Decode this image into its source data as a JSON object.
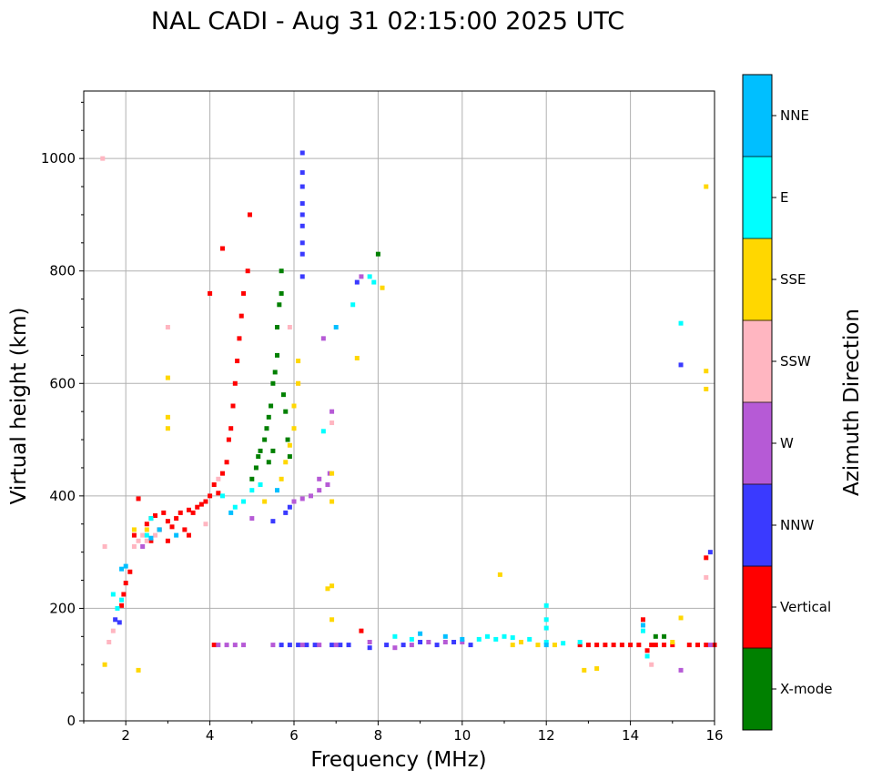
{
  "chart_data": {
    "type": "scatter",
    "title": "NAL CADI - Aug 31 02:15:00 2025 UTC",
    "xlabel": "Frequency (MHz)",
    "ylabel": "Virtual height (km)",
    "xlim": [
      1,
      16
    ],
    "ylim": [
      0,
      1120
    ],
    "xticks": [
      2,
      4,
      6,
      8,
      10,
      12,
      14,
      16
    ],
    "yticks": [
      0,
      200,
      400,
      600,
      800,
      1000
    ],
    "grid": true,
    "colorbar": {
      "label": "Azimuth Direction",
      "categories": [
        {
          "name": "X-mode",
          "color": "#008000"
        },
        {
          "name": "Vertical",
          "color": "#ff0000"
        },
        {
          "name": "NNW",
          "color": "#3a3aff"
        },
        {
          "name": "W",
          "color": "#b65ad6"
        },
        {
          "name": "SSW",
          "color": "#ffb6c1"
        },
        {
          "name": "SSE",
          "color": "#ffd700"
        },
        {
          "name": "E",
          "color": "#00ffff"
        },
        {
          "name": "NNE",
          "color": "#00bfff"
        }
      ]
    },
    "series": [
      {
        "name": "Vertical",
        "points": [
          [
            1.9,
            205
          ],
          [
            1.95,
            225
          ],
          [
            2.0,
            245
          ],
          [
            2.1,
            265
          ],
          [
            2.2,
            330
          ],
          [
            2.3,
            395
          ],
          [
            2.5,
            350
          ],
          [
            2.6,
            360
          ],
          [
            2.7,
            365
          ],
          [
            2.8,
            340
          ],
          [
            2.9,
            370
          ],
          [
            3.0,
            355
          ],
          [
            3.1,
            345
          ],
          [
            3.2,
            360
          ],
          [
            3.3,
            370
          ],
          [
            3.4,
            340
          ],
          [
            3.5,
            375
          ],
          [
            3.6,
            370
          ],
          [
            3.7,
            380
          ],
          [
            3.8,
            385
          ],
          [
            3.9,
            390
          ],
          [
            4.0,
            400
          ],
          [
            4.1,
            420
          ],
          [
            4.2,
            405
          ],
          [
            4.3,
            440
          ],
          [
            4.4,
            460
          ],
          [
            4.45,
            500
          ],
          [
            4.5,
            520
          ],
          [
            4.55,
            560
          ],
          [
            4.6,
            600
          ],
          [
            4.65,
            640
          ],
          [
            4.7,
            680
          ],
          [
            4.75,
            720
          ],
          [
            4.8,
            760
          ],
          [
            4.9,
            800
          ],
          [
            4.95,
            900
          ],
          [
            3.5,
            330
          ],
          [
            3.0,
            320
          ],
          [
            2.6,
            320
          ],
          [
            4.0,
            760
          ],
          [
            4.3,
            840
          ],
          [
            14.3,
            180
          ],
          [
            14.4,
            125
          ],
          [
            14.5,
            135
          ],
          [
            15.8,
            290
          ],
          [
            4.1,
            135
          ],
          [
            7.6,
            160
          ],
          [
            12.8,
            135
          ],
          [
            13.0,
            135
          ],
          [
            13.2,
            135
          ],
          [
            13.4,
            135
          ],
          [
            13.6,
            135
          ],
          [
            13.8,
            135
          ],
          [
            14.0,
            135
          ],
          [
            14.2,
            135
          ],
          [
            14.6,
            135
          ],
          [
            14.8,
            135
          ],
          [
            15.0,
            135
          ],
          [
            15.4,
            135
          ],
          [
            15.6,
            135
          ],
          [
            15.8,
            135
          ],
          [
            16.0,
            135
          ]
        ]
      },
      {
        "name": "X-mode",
        "points": [
          [
            5.0,
            430
          ],
          [
            5.1,
            450
          ],
          [
            5.15,
            470
          ],
          [
            5.2,
            480
          ],
          [
            5.3,
            500
          ],
          [
            5.35,
            520
          ],
          [
            5.4,
            540
          ],
          [
            5.45,
            560
          ],
          [
            5.5,
            600
          ],
          [
            5.55,
            620
          ],
          [
            5.6,
            650
          ],
          [
            5.6,
            700
          ],
          [
            5.65,
            740
          ],
          [
            5.7,
            760
          ],
          [
            5.7,
            800
          ],
          [
            5.75,
            580
          ],
          [
            5.8,
            550
          ],
          [
            5.85,
            500
          ],
          [
            5.9,
            470
          ],
          [
            5.5,
            480
          ],
          [
            5.4,
            460
          ],
          [
            8.0,
            830
          ],
          [
            14.6,
            150
          ],
          [
            14.8,
            150
          ]
        ]
      },
      {
        "name": "NNW",
        "points": [
          [
            6.2,
            1010
          ],
          [
            6.2,
            975
          ],
          [
            6.2,
            950
          ],
          [
            6.2,
            920
          ],
          [
            6.2,
            900
          ],
          [
            6.2,
            880
          ],
          [
            6.2,
            850
          ],
          [
            6.2,
            830
          ],
          [
            6.2,
            790
          ],
          [
            5.9,
            380
          ],
          [
            5.8,
            370
          ],
          [
            5.5,
            355
          ],
          [
            15.2,
            633
          ],
          [
            15.9,
            300
          ],
          [
            7.5,
            780
          ],
          [
            5.7,
            135
          ],
          [
            5.9,
            135
          ],
          [
            6.1,
            135
          ],
          [
            6.3,
            135
          ],
          [
            6.5,
            135
          ],
          [
            6.9,
            135
          ],
          [
            7.1,
            135
          ],
          [
            7.3,
            135
          ],
          [
            7.8,
            130
          ],
          [
            8.2,
            135
          ],
          [
            8.6,
            135
          ],
          [
            9.0,
            140
          ],
          [
            9.4,
            135
          ],
          [
            9.8,
            140
          ],
          [
            10.2,
            135
          ],
          [
            1.75,
            180
          ],
          [
            1.85,
            175
          ]
        ]
      },
      {
        "name": "W",
        "points": [
          [
            6.0,
            390
          ],
          [
            6.2,
            395
          ],
          [
            6.4,
            400
          ],
          [
            6.6,
            410
          ],
          [
            6.8,
            420
          ],
          [
            6.6,
            430
          ],
          [
            6.7,
            680
          ],
          [
            6.9,
            550
          ],
          [
            7.6,
            790
          ],
          [
            6.85,
            440
          ],
          [
            4.2,
            135
          ],
          [
            4.4,
            135
          ],
          [
            4.6,
            135
          ],
          [
            4.8,
            135
          ],
          [
            5.5,
            135
          ],
          [
            6.2,
            135
          ],
          [
            6.6,
            135
          ],
          [
            7.0,
            135
          ],
          [
            7.8,
            140
          ],
          [
            8.4,
            130
          ],
          [
            8.8,
            135
          ],
          [
            9.2,
            140
          ],
          [
            9.6,
            140
          ],
          [
            10.0,
            140
          ],
          [
            15.2,
            90
          ],
          [
            15.9,
            135
          ],
          [
            5.0,
            360
          ],
          [
            2.4,
            310
          ]
        ]
      },
      {
        "name": "SSW",
        "points": [
          [
            1.45,
            1000
          ],
          [
            1.6,
            140
          ],
          [
            1.7,
            160
          ],
          [
            2.2,
            310
          ],
          [
            2.3,
            320
          ],
          [
            2.4,
            330
          ],
          [
            2.5,
            320
          ],
          [
            2.7,
            330
          ],
          [
            3.0,
            700
          ],
          [
            5.9,
            700
          ],
          [
            6.1,
            600
          ],
          [
            6.9,
            530
          ],
          [
            14.5,
            100
          ],
          [
            15.8,
            255
          ],
          [
            4.2,
            430
          ],
          [
            3.9,
            350
          ],
          [
            1.5,
            310
          ]
        ]
      },
      {
        "name": "SSE",
        "points": [
          [
            3.0,
            520
          ],
          [
            3.0,
            540
          ],
          [
            3.0,
            610
          ],
          [
            5.7,
            430
          ],
          [
            5.8,
            460
          ],
          [
            5.9,
            490
          ],
          [
            6.0,
            520
          ],
          [
            6.0,
            560
          ],
          [
            6.1,
            600
          ],
          [
            6.1,
            640
          ],
          [
            6.9,
            390
          ],
          [
            6.9,
            440
          ],
          [
            6.9,
            240
          ],
          [
            6.9,
            180
          ],
          [
            7.5,
            645
          ],
          [
            8.1,
            770
          ],
          [
            10.9,
            260
          ],
          [
            12.9,
            90
          ],
          [
            13.2,
            93
          ],
          [
            15.2,
            183
          ],
          [
            15.8,
            950
          ],
          [
            15.8,
            622
          ],
          [
            15.8,
            590
          ],
          [
            1.5,
            100
          ],
          [
            2.3,
            90
          ],
          [
            2.2,
            340
          ],
          [
            2.5,
            340
          ],
          [
            5.3,
            390
          ],
          [
            11.2,
            135
          ],
          [
            11.4,
            140
          ],
          [
            11.8,
            135
          ],
          [
            12.2,
            135
          ],
          [
            15.0,
            140
          ],
          [
            6.8,
            235
          ]
        ]
      },
      {
        "name": "E",
        "points": [
          [
            1.9,
            215
          ],
          [
            1.8,
            200
          ],
          [
            2.5,
            330
          ],
          [
            4.3,
            400
          ],
          [
            4.6,
            380
          ],
          [
            4.8,
            390
          ],
          [
            5.0,
            410
          ],
          [
            5.2,
            420
          ],
          [
            7.4,
            740
          ],
          [
            7.8,
            790
          ],
          [
            7.9,
            780
          ],
          [
            12.0,
            205
          ],
          [
            12.0,
            180
          ],
          [
            12.0,
            165
          ],
          [
            15.2,
            707
          ],
          [
            6.7,
            515
          ],
          [
            10.4,
            145
          ],
          [
            10.6,
            150
          ],
          [
            10.8,
            145
          ],
          [
            11.0,
            150
          ],
          [
            11.2,
            148
          ],
          [
            11.6,
            145
          ],
          [
            12.0,
            140
          ],
          [
            12.4,
            138
          ],
          [
            12.8,
            140
          ],
          [
            8.4,
            150
          ],
          [
            8.8,
            145
          ],
          [
            14.3,
            160
          ],
          [
            14.4,
            115
          ],
          [
            2.6,
            360
          ],
          [
            1.7,
            225
          ]
        ]
      },
      {
        "name": "NNE",
        "points": [
          [
            2.6,
            325
          ],
          [
            2.8,
            340
          ],
          [
            3.2,
            330
          ],
          [
            4.5,
            370
          ],
          [
            5.6,
            410
          ],
          [
            7.0,
            700
          ],
          [
            9.0,
            155
          ],
          [
            9.6,
            150
          ],
          [
            10.0,
            145
          ],
          [
            12.0,
            135
          ],
          [
            14.3,
            170
          ],
          [
            1.9,
            270
          ],
          [
            2.0,
            275
          ]
        ]
      }
    ]
  }
}
